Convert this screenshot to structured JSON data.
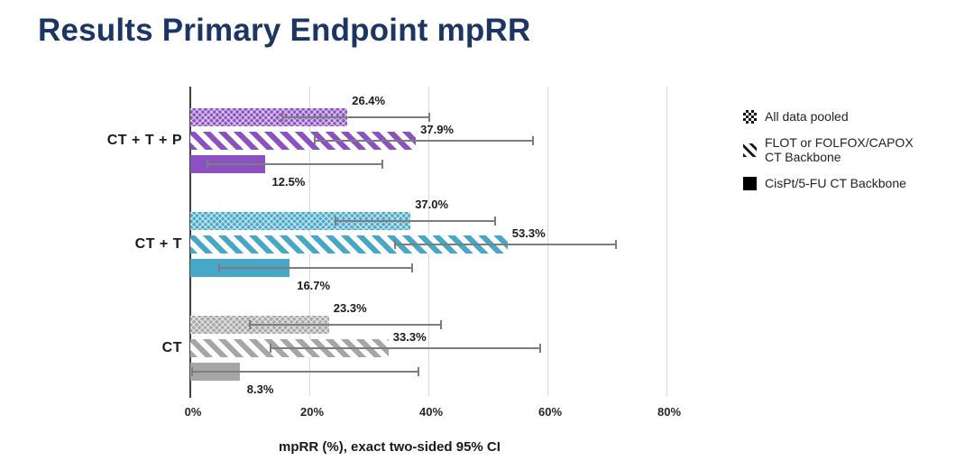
{
  "slide": {
    "title": "Results Primary Endpoint mpRR"
  },
  "colors": {
    "title": "#1b3666",
    "group_ct_t_p": "#8c50c3",
    "group_ct_t": "#45a8c8",
    "group_ct": "#a6a6a6",
    "error_bar": "#7d7d7d",
    "gridline": "#d8d8d8",
    "axis": "#3f3f3f"
  },
  "chart_data": {
    "type": "bar",
    "orientation": "horizontal",
    "title": "",
    "xlabel": "mpRR (%), exact two-sided 95% CI",
    "ylabel": "",
    "xlim": [
      0,
      87
    ],
    "grid": true,
    "x_ticks": [
      {
        "label": "0%",
        "value": 0
      },
      {
        "label": "20%",
        "value": 20
      },
      {
        "label": "40%",
        "value": 40
      },
      {
        "label": "60%",
        "value": 60
      },
      {
        "label": "80%",
        "value": 80
      }
    ],
    "series_order": [
      "All data pooled",
      "FLOT or FOLFOX/CAPOX CT Backbone",
      "CisPt/5-FU CT Backbone"
    ],
    "groups": [
      {
        "label": "CT + T + P",
        "color": "#8c50c3",
        "bars": [
          {
            "series": "All data pooled",
            "pattern": "checker",
            "value": 26.4,
            "value_label": "26.4%",
            "ci_est": [
              15.3,
              40.3
            ]
          },
          {
            "series": "FLOT or FOLFOX/CAPOX CT Backbone",
            "pattern": "stripes",
            "value": 37.9,
            "value_label": "37.9%",
            "ci_est": [
              20.7,
              57.7
            ]
          },
          {
            "series": "CisPt/5-FU CT Backbone",
            "pattern": "solid",
            "value": 12.5,
            "value_label": "12.5%",
            "ci_est": [
              2.7,
              32.4
            ]
          }
        ]
      },
      {
        "label": "CT + T",
        "color": "#45a8c8",
        "bars": [
          {
            "series": "All data pooled",
            "pattern": "checker",
            "value": 37.0,
            "value_label": "37.0%",
            "ci_est": [
              24.3,
              51.3
            ]
          },
          {
            "series": "FLOT or FOLFOX/CAPOX CT Backbone",
            "pattern": "stripes",
            "value": 53.3,
            "value_label": "53.3%",
            "ci_est": [
              34.3,
              71.7
            ]
          },
          {
            "series": "CisPt/5-FU CT Backbone",
            "pattern": "solid",
            "value": 16.7,
            "value_label": "16.7%",
            "ci_est": [
              4.7,
              37.4
            ]
          }
        ]
      },
      {
        "label": "CT",
        "color": "#a6a6a6",
        "bars": [
          {
            "series": "All data pooled",
            "pattern": "checker",
            "value": 23.3,
            "value_label": "23.3%",
            "ci_est": [
              9.9,
              42.3
            ]
          },
          {
            "series": "FLOT or FOLFOX/CAPOX CT Backbone",
            "pattern": "stripes",
            "value": 33.3,
            "value_label": "33.3%",
            "ci_est": [
              13.3,
              59.0
            ]
          },
          {
            "series": "CisPt/5-FU CT Backbone",
            "pattern": "solid",
            "value": 8.3,
            "value_label": "8.3%",
            "ci_est": [
              0.2,
              38.5
            ]
          }
        ]
      }
    ],
    "legend": {
      "position": "right",
      "items": [
        {
          "label": "All data pooled",
          "lines": [
            "All data pooled"
          ],
          "pattern": "checker"
        },
        {
          "label": "FLOT or FOLFOX/CAPOX CT Backbone",
          "lines": [
            "FLOT or FOLFOX/CAPOX",
            "CT Backbone"
          ],
          "pattern": "stripes"
        },
        {
          "label": "CisPt/5-FU CT Backbone",
          "lines": [
            "CisPt/5-FU CT Backbone"
          ],
          "pattern": "solid"
        }
      ]
    }
  }
}
